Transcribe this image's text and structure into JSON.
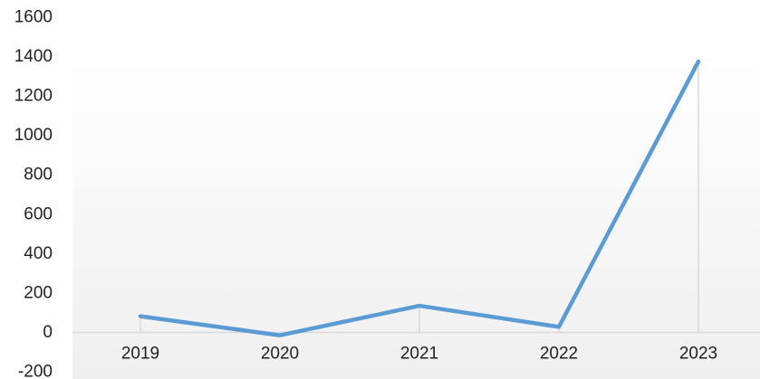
{
  "chart_data": {
    "type": "line",
    "categories": [
      "2019",
      "2020",
      "2021",
      "2022",
      "2023"
    ],
    "series": [
      {
        "values": [
          82,
          -15,
          135,
          28,
          1375
        ],
        "color": "#5b9bd5"
      }
    ],
    "ylim": [
      -200,
      1600
    ],
    "yticks": [
      "-200",
      "0",
      "200",
      "400",
      "600",
      "800",
      "1000",
      "1200",
      "1400",
      "1600"
    ],
    "grid": false,
    "legend": "none",
    "colors": {
      "background_gradient_top": "#ffffff",
      "background_gradient_bottom": "#efefef",
      "axis_line": "#d9d9d9"
    }
  }
}
